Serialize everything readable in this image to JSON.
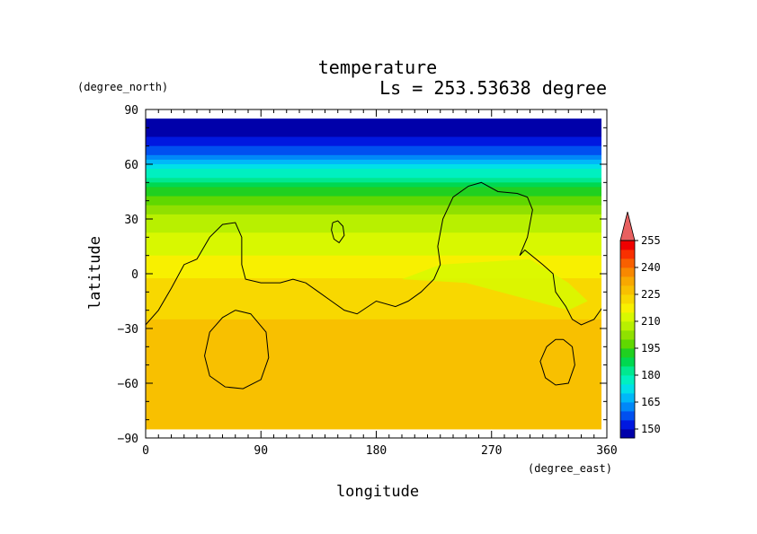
{
  "chart_data": {
    "type": "heatmap",
    "title": "temperature",
    "subtitle": "Ls = 253.53638 degree",
    "xlabel": "longitude",
    "ylabel": "latitude",
    "xunit": "(degree_east)",
    "yunit": "(degree_north)",
    "xlim": [
      0,
      360
    ],
    "ylim": [
      -90,
      90
    ],
    "xticks": [
      0,
      90,
      180,
      270,
      360
    ],
    "yticks": [
      90,
      60,
      30,
      0,
      -30,
      -60,
      -90
    ],
    "colorbar": {
      "levels": [
        145,
        150,
        155,
        160,
        165,
        170,
        175,
        180,
        185,
        190,
        195,
        200,
        205,
        210,
        215,
        220,
        225,
        230,
        235,
        240,
        245,
        250,
        255,
        260
      ],
      "labels": [
        255,
        240,
        225,
        210,
        195,
        180,
        165,
        150
      ],
      "colors": [
        "#0000aa",
        "#0018e0",
        "#0050f0",
        "#0088f8",
        "#00b8f8",
        "#00e0e8",
        "#00f0c0",
        "#00e890",
        "#00d850",
        "#20d020",
        "#60d800",
        "#90e000",
        "#b8f000",
        "#d8f800",
        "#f8f000",
        "#f8d800",
        "#f8c000",
        "#f8a800",
        "#f88800",
        "#f86000",
        "#f83000",
        "#f00000",
        "#e86060"
      ]
    },
    "contour_level_note": "",
    "temperature_profile": [
      {
        "lat": 85,
        "value": 147
      },
      {
        "lat": 75,
        "value": 150
      },
      {
        "lat": 65,
        "value": 160
      },
      {
        "lat": 55,
        "value": 178
      },
      {
        "lat": 48,
        "value": 188
      },
      {
        "lat": 40,
        "value": 198
      },
      {
        "lat": 30,
        "value": 206
      },
      {
        "lat": 20,
        "value": 212
      },
      {
        "lat": 10,
        "value": 215
      },
      {
        "lat": 0,
        "value": 219
      },
      {
        "lat": -15,
        "value": 223
      },
      {
        "lat": -30,
        "value": 226
      },
      {
        "lat": -60,
        "value": 227
      },
      {
        "lat": -85,
        "value": 226
      }
    ],
    "contours": [
      {
        "name": "main",
        "points": [
          [
            0,
            -28
          ],
          [
            10,
            -20
          ],
          [
            20,
            -8
          ],
          [
            30,
            5
          ],
          [
            40,
            8
          ],
          [
            50,
            20
          ],
          [
            60,
            27
          ],
          [
            70,
            28
          ],
          [
            75,
            20
          ],
          [
            75,
            5
          ],
          [
            78,
            -3
          ],
          [
            90,
            -5
          ],
          [
            105,
            -5
          ],
          [
            115,
            -3
          ],
          [
            125,
            -5
          ],
          [
            135,
            -10
          ],
          [
            145,
            -15
          ],
          [
            155,
            -20
          ],
          [
            165,
            -22
          ],
          [
            180,
            -15
          ],
          [
            195,
            -18
          ],
          [
            205,
            -15
          ],
          [
            215,
            -10
          ],
          [
            225,
            -3
          ],
          [
            230,
            5
          ],
          [
            228,
            15
          ],
          [
            232,
            30
          ],
          [
            240,
            42
          ],
          [
            252,
            48
          ],
          [
            262,
            50
          ],
          [
            275,
            45
          ],
          [
            290,
            44
          ],
          [
            298,
            42
          ],
          [
            302,
            35
          ],
          [
            298,
            20
          ],
          [
            292,
            10
          ],
          [
            296,
            13
          ],
          [
            310,
            5
          ],
          [
            318,
            0
          ],
          [
            320,
            -10
          ],
          [
            328,
            -18
          ],
          [
            333,
            -25
          ],
          [
            340,
            -28
          ],
          [
            350,
            -25
          ],
          [
            360,
            -15
          ]
        ]
      },
      {
        "name": "island",
        "points": [
          [
            146,
            28
          ],
          [
            150,
            29
          ],
          [
            154,
            26
          ],
          [
            155,
            21
          ],
          [
            151,
            17
          ],
          [
            147,
            19
          ],
          [
            145,
            24
          ],
          [
            146,
            28
          ]
        ]
      },
      {
        "name": "loop-west",
        "points": [
          [
            70,
            -20
          ],
          [
            82,
            -22
          ],
          [
            94,
            -32
          ],
          [
            96,
            -46
          ],
          [
            90,
            -58
          ],
          [
            76,
            -63
          ],
          [
            62,
            -62
          ],
          [
            50,
            -56
          ],
          [
            46,
            -45
          ],
          [
            50,
            -32
          ],
          [
            60,
            -24
          ],
          [
            70,
            -20
          ]
        ]
      },
      {
        "name": "loop-east",
        "points": [
          [
            326,
            -36
          ],
          [
            333,
            -40
          ],
          [
            335,
            -50
          ],
          [
            330,
            -60
          ],
          [
            320,
            -61
          ],
          [
            312,
            -57
          ],
          [
            308,
            -48
          ],
          [
            313,
            -40
          ],
          [
            320,
            -36
          ],
          [
            326,
            -36
          ]
        ]
      }
    ],
    "grid": false
  }
}
